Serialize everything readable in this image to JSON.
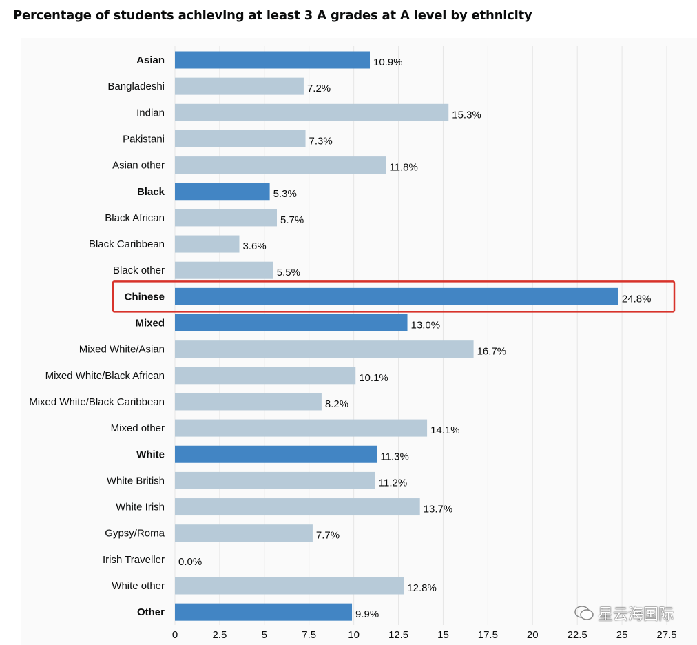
{
  "title": "Percentage of students achieving at least 3 A grades at A level by ethnicity",
  "watermark": "星云海国际",
  "colors": {
    "group": "#4285c4",
    "sub": "#b7cad8",
    "highlight": "#d7332b",
    "grid": "#e6e6e6",
    "text": "#0b0c0c"
  },
  "chart_data": {
    "type": "bar",
    "orientation": "horizontal",
    "title": "Percentage of students achieving at least 3 A grades at A level by ethnicity",
    "xlim": [
      0,
      27.5
    ],
    "xticks": [
      0,
      2.5,
      5,
      7.5,
      10,
      12.5,
      15,
      17.5,
      20,
      22.5,
      25,
      27.5
    ],
    "xtick_labels": [
      "0",
      "2.5",
      "5",
      "7.5",
      "10",
      "12.5",
      "15",
      "17.5",
      "20",
      "22.5",
      "25",
      "27.5"
    ],
    "highlighted": "Chinese",
    "bars": [
      {
        "label": "Asian",
        "value": 10.9,
        "value_label": "10.9%",
        "group": true
      },
      {
        "label": "Bangladeshi",
        "value": 7.2,
        "value_label": "7.2%",
        "group": false
      },
      {
        "label": "Indian",
        "value": 15.3,
        "value_label": "15.3%",
        "group": false
      },
      {
        "label": "Pakistani",
        "value": 7.3,
        "value_label": "7.3%",
        "group": false
      },
      {
        "label": "Asian other",
        "value": 11.8,
        "value_label": "11.8%",
        "group": false
      },
      {
        "label": "Black",
        "value": 5.3,
        "value_label": "5.3%",
        "group": true
      },
      {
        "label": "Black African",
        "value": 5.7,
        "value_label": "5.7%",
        "group": false
      },
      {
        "label": "Black Caribbean",
        "value": 3.6,
        "value_label": "3.6%",
        "group": false
      },
      {
        "label": "Black other",
        "value": 5.5,
        "value_label": "5.5%",
        "group": false
      },
      {
        "label": "Chinese",
        "value": 24.8,
        "value_label": "24.8%",
        "group": true
      },
      {
        "label": "Mixed",
        "value": 13.0,
        "value_label": "13.0%",
        "group": true
      },
      {
        "label": "Mixed White/Asian",
        "value": 16.7,
        "value_label": "16.7%",
        "group": false
      },
      {
        "label": "Mixed White/Black African",
        "value": 10.1,
        "value_label": "10.1%",
        "group": false
      },
      {
        "label": "Mixed White/Black Caribbean",
        "value": 8.2,
        "value_label": "8.2%",
        "group": false
      },
      {
        "label": "Mixed other",
        "value": 14.1,
        "value_label": "14.1%",
        "group": false
      },
      {
        "label": "White",
        "value": 11.3,
        "value_label": "11.3%",
        "group": true
      },
      {
        "label": "White British",
        "value": 11.2,
        "value_label": "11.2%",
        "group": false
      },
      {
        "label": "White Irish",
        "value": 13.7,
        "value_label": "13.7%",
        "group": false
      },
      {
        "label": "Gypsy/Roma",
        "value": 7.7,
        "value_label": "7.7%",
        "group": false
      },
      {
        "label": "Irish Traveller",
        "value": 0.0,
        "value_label": "0.0%",
        "group": false
      },
      {
        "label": "White other",
        "value": 12.8,
        "value_label": "12.8%",
        "group": false
      },
      {
        "label": "Other",
        "value": 9.9,
        "value_label": "9.9%",
        "group": true
      }
    ]
  }
}
